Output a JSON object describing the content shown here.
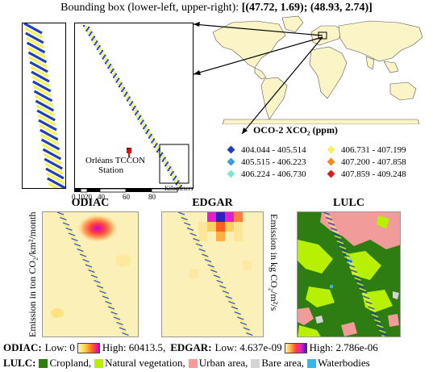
{
  "header": {
    "prefix": "Bounding box (lower-left, upper-right):",
    "coords": "[(47.72, 1.69); (48.93, 2.74)]"
  },
  "station": {
    "label_line1": "Orléans TCCON",
    "label_line2": "Station"
  },
  "scalebar": {
    "ticks": [
      "0",
      "10",
      "20",
      "40",
      "60",
      "80"
    ],
    "unit": "Kilometers"
  },
  "legend": {
    "title": "OCO-2 XCO₂ (ppm)",
    "items": [
      {
        "range": "404.044 - 405.514",
        "color": "#1f3fbf"
      },
      {
        "range": "405.515 - 406.223",
        "color": "#3e9be0"
      },
      {
        "range": "406.224 - 406.730",
        "color": "#7fe6d6"
      },
      {
        "range": "406.731 - 407.199",
        "color": "#f2f25a"
      },
      {
        "range": "407.200 - 407.858",
        "color": "#f08a1c"
      },
      {
        "range": "407.859 - 409.248",
        "color": "#d61f1f"
      }
    ]
  },
  "panels": {
    "odiac": "ODIAC",
    "edgar": "EDGAR",
    "lulc": "LULC"
  },
  "axis_labels": {
    "left": "Emission in ton CO₂/km²/month",
    "middle": "Emission in kg CO₂/m²/s"
  },
  "colorbars": {
    "odiac_label": "ODIAC:",
    "odiac_low": "Low: 0",
    "odiac_high": "High:  60413.5,",
    "edgar_label": "EDGAR:",
    "edgar_low": "Low: 4.637e-09",
    "edgar_high": "High:  2.786e-06"
  },
  "lulc_legend": {
    "label": "LULC:",
    "items": [
      {
        "name": "Cropland,",
        "color": "#2e7d12"
      },
      {
        "name": "Natural vegetation,",
        "color": "#b7f000"
      },
      {
        "name": "Urban area,",
        "color": "#f29b9b"
      },
      {
        "name": "Bare area,",
        "color": "#d4d4d4"
      },
      {
        "name": "Waterbodies",
        "color": "#32b7e8"
      }
    ]
  }
}
